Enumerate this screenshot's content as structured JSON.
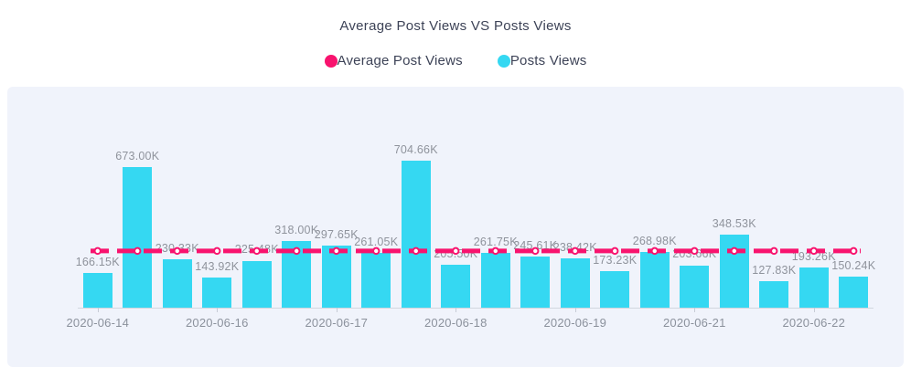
{
  "chart_data": {
    "type": "bar",
    "title": "Average Post Views VS Posts Views",
    "legend": [
      {
        "name": "Average Post Views",
        "color": "#f8136e",
        "type": "line"
      },
      {
        "name": "Posts Views",
        "color": "#35d8f2",
        "type": "bar"
      }
    ],
    "unit": "K",
    "values_k": [
      166.15,
      673.0,
      230.33,
      143.92,
      225.48,
      318.0,
      297.65,
      261.05,
      704.66,
      205.5,
      261.75,
      245.61,
      238.42,
      173.23,
      268.98,
      203.66,
      348.53,
      127.83,
      193.26,
      150.24
    ],
    "value_labels": [
      "166.15K",
      "673.00K",
      "230.33K",
      "143.92K",
      "225.48K",
      "318.00K",
      "297.65K",
      "261.05K",
      "704.66K",
      "205.50K",
      "261.75K",
      "245.61K",
      "238.42K",
      "173.23K",
      "268.98K",
      "203.66K",
      "348.53K",
      "127.83K",
      "193.26K",
      "150.24K"
    ],
    "average_line": {
      "name": "Average Post Views",
      "value_k": 271.86,
      "style": "dashed-with-markers"
    },
    "x_tick_labels": [
      {
        "index": 0,
        "label": "2020-06-14"
      },
      {
        "index": 3,
        "label": "2020-06-16"
      },
      {
        "index": 6,
        "label": "2020-06-17"
      },
      {
        "index": 9,
        "label": "2020-06-18"
      },
      {
        "index": 12,
        "label": "2020-06-19"
      },
      {
        "index": 15,
        "label": "2020-06-21"
      },
      {
        "index": 18,
        "label": "2020-06-22"
      }
    ],
    "ylim_k": [
      0,
      760
    ],
    "grid": "off",
    "legend_position": "top-center",
    "colors": {
      "bar": "#35d8f2",
      "average_line": "#f8136e",
      "panel_background": "#f0f3fb",
      "page_background": "#ffffff",
      "title_text": "#3d4357",
      "value_label_text": "#8f939c",
      "axis_label_text": "#8b919c",
      "axis_line": "#d2d6de"
    }
  }
}
